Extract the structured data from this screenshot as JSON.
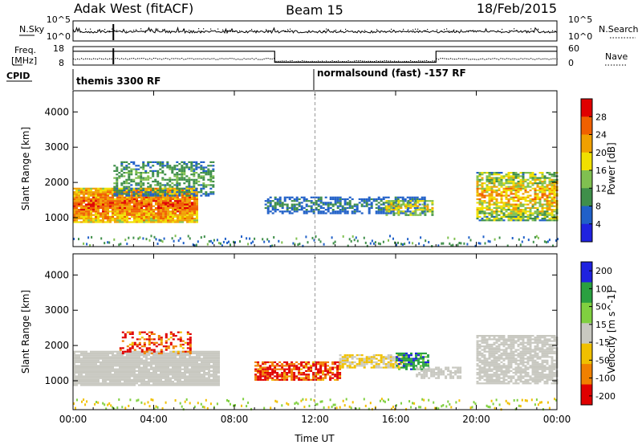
{
  "header": {
    "title_left": "Adak West (fitACF)",
    "title_center": "Beam 15",
    "title_right": "18/Feb/2015"
  },
  "top_panels": {
    "nsky_label": "N.Sky",
    "nsky_ticks": [
      "10^5",
      "10^0"
    ],
    "nsearch_label": "N.Search",
    "nsearch_ticks": [
      "10^5",
      "10^0"
    ],
    "freq_label": "Freq.",
    "freq_unit": "[MHz]",
    "freq_ticks": [
      "18",
      "8"
    ],
    "nave_label": "Nave",
    "nave_ticks": [
      "60",
      "0"
    ],
    "cpid_label": "CPID",
    "cpid_segments": [
      {
        "start_hour": 0,
        "end_hour": 12,
        "label": "themis 3300 RF"
      },
      {
        "start_hour": 12,
        "end_hour": 24,
        "label": "normalsound (fast) -157 RF"
      }
    ],
    "freq_steps": [
      {
        "start_hour": 0,
        "end_hour": 10,
        "level": 0.75
      },
      {
        "start_hour": 10,
        "end_hour": 18,
        "level": 0.15
      },
      {
        "start_hour": 18,
        "end_hour": 24,
        "level": 0.75
      }
    ]
  },
  "chart_data": [
    {
      "type": "heatmap",
      "panel": "power",
      "ylabel": "Slant Range [km]",
      "ylim": [
        180,
        4600
      ],
      "yticks": [
        1000,
        2000,
        3000,
        4000
      ],
      "colorbar_label": "Power [dB]",
      "colorbar_ticks": [
        4,
        8,
        12,
        16,
        20,
        24,
        28
      ],
      "colorbar_range": [
        0,
        32
      ],
      "colormap": [
        "#1f22e0",
        "#2060c8",
        "#3f8f4a",
        "#80c050",
        "#f0e000",
        "#f0a000",
        "#f06000",
        "#e00000"
      ],
      "regions": [
        {
          "x0": 0.0,
          "x1": 6.2,
          "r0": 850,
          "r1": 1850,
          "vmin": 14,
          "vmax": 30,
          "density": 0.95
        },
        {
          "x0": 2.0,
          "x1": 7.0,
          "r0": 1600,
          "r1": 2600,
          "vmin": 4,
          "vmax": 14,
          "density": 0.55
        },
        {
          "x0": 9.5,
          "x1": 17.5,
          "r0": 1100,
          "r1": 1600,
          "vmin": 4,
          "vmax": 10,
          "density": 0.6
        },
        {
          "x0": 15.5,
          "x1": 17.8,
          "r0": 1050,
          "r1": 1500,
          "vmin": 8,
          "vmax": 22,
          "density": 0.6
        },
        {
          "x0": 20.0,
          "x1": 24.0,
          "r0": 900,
          "r1": 2300,
          "vmin": 6,
          "vmax": 26,
          "density": 0.75
        }
      ]
    },
    {
      "type": "heatmap",
      "panel": "velocity",
      "ylabel": "Slant Range [km]",
      "ylim": [
        180,
        4600
      ],
      "yticks": [
        1000,
        2000,
        3000,
        4000
      ],
      "colorbar_label": "Velocity [m s^-1]",
      "colorbar_ticks": [
        200,
        100,
        50,
        15,
        -15,
        -50,
        -100,
        -200
      ],
      "colormap": [
        "#1f22e0",
        "#2aa040",
        "#80d040",
        "#c8c8c0",
        "#f0c000",
        "#f08000",
        "#e00000"
      ],
      "regions": [
        {
          "x0": 0.0,
          "x1": 7.2,
          "r0": 850,
          "r1": 1850,
          "vmin": -15,
          "vmax": 15,
          "density": 0.95
        },
        {
          "x0": 2.3,
          "x1": 5.8,
          "r0": 1750,
          "r1": 2400,
          "vmin": -200,
          "vmax": -50,
          "density": 0.4
        },
        {
          "x0": 9.0,
          "x1": 13.2,
          "r0": 1000,
          "r1": 1550,
          "vmin": -200,
          "vmax": -50,
          "density": 0.75
        },
        {
          "x0": 13.2,
          "x1": 16.5,
          "r0": 1350,
          "r1": 1750,
          "vmin": -50,
          "vmax": 15,
          "density": 0.75
        },
        {
          "x0": 16.0,
          "x1": 17.6,
          "r0": 1300,
          "r1": 1800,
          "vmin": 50,
          "vmax": 200,
          "density": 0.7
        },
        {
          "x0": 17.0,
          "x1": 19.2,
          "r0": 1050,
          "r1": 1400,
          "vmin": -15,
          "vmax": 15,
          "density": 0.7
        },
        {
          "x0": 20.0,
          "x1": 24.0,
          "r0": 900,
          "r1": 2300,
          "vmin": -15,
          "vmax": 15,
          "density": 0.8
        }
      ]
    }
  ],
  "xaxis": {
    "label": "Time UT",
    "ticks": [
      "00:00",
      "04:00",
      "08:00",
      "12:00",
      "16:00",
      "20:00",
      "00:00"
    ],
    "tick_hours": [
      0,
      4,
      8,
      12,
      16,
      20,
      24
    ]
  }
}
